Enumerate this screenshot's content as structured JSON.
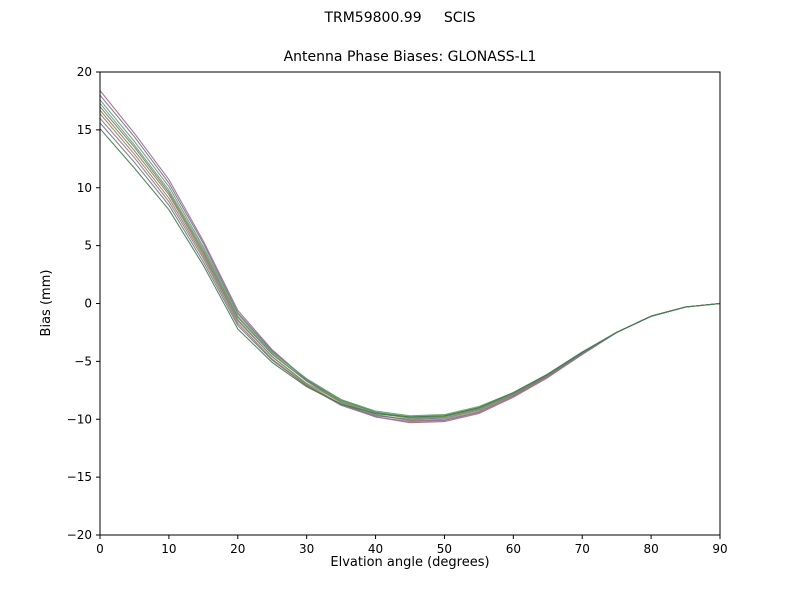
{
  "figure": {
    "suptitle": "TRM59800.99     SCIS",
    "background": "#ffffff",
    "axes_color": "#000000"
  },
  "chart_data": {
    "type": "line",
    "title": "Antenna Phase Biases: GLONASS-L1",
    "xlabel": "Elvation angle (degrees)",
    "ylabel": "Bias (mm)",
    "xlim": [
      0,
      90
    ],
    "ylim": [
      -20,
      20
    ],
    "xticks": [
      0,
      10,
      20,
      30,
      40,
      50,
      60,
      70,
      80,
      90
    ],
    "yticks": [
      -20,
      -15,
      -10,
      -5,
      0,
      5,
      10,
      15,
      20
    ],
    "grid": false,
    "legend_position": "none",
    "x": [
      0,
      5,
      10,
      15,
      20,
      25,
      30,
      35,
      40,
      45,
      50,
      55,
      60,
      65,
      70,
      75,
      80,
      85,
      90
    ],
    "series": [
      {
        "name": "line-01",
        "color": "#9c6a84",
        "values": [
          18.4,
          14.7,
          10.7,
          5.4,
          -0.6,
          -4.0,
          -6.6,
          -8.5,
          -9.6,
          -10.1,
          -10.1,
          -9.4,
          -8.0,
          -6.3,
          -4.4,
          -2.5,
          -1.1,
          -0.3,
          0.0
        ]
      },
      {
        "name": "line-02",
        "color": "#7b68a0",
        "values": [
          18.0,
          14.4,
          10.4,
          5.2,
          -0.8,
          -4.1,
          -6.6,
          -8.3,
          -9.4,
          -9.9,
          -9.8,
          -9.1,
          -7.8,
          -6.2,
          -4.3,
          -2.5,
          -1.1,
          -0.3,
          0.0
        ]
      },
      {
        "name": "line-03",
        "color": "#5f9e5f",
        "values": [
          17.6,
          14.0,
          10.1,
          4.9,
          -0.9,
          -4.2,
          -6.5,
          -8.3,
          -9.3,
          -9.7,
          -9.6,
          -8.9,
          -7.7,
          -6.1,
          -4.2,
          -2.5,
          -1.1,
          -0.3,
          0.0
        ]
      },
      {
        "name": "line-04",
        "color": "#8c8c8c",
        "values": [
          17.3,
          13.7,
          9.8,
          4.7,
          -1.1,
          -4.3,
          -6.7,
          -8.6,
          -9.6,
          -10.1,
          -10.0,
          -9.3,
          -8.0,
          -6.3,
          -4.3,
          -2.5,
          -1.1,
          -0.3,
          0.0
        ]
      },
      {
        "name": "line-05",
        "color": "#4f8f6b",
        "values": [
          17.0,
          13.5,
          9.6,
          4.5,
          -1.2,
          -4.4,
          -6.7,
          -8.4,
          -9.4,
          -9.8,
          -9.7,
          -9.0,
          -7.8,
          -6.1,
          -4.2,
          -2.5,
          -1.1,
          -0.3,
          0.0
        ]
      },
      {
        "name": "line-06",
        "color": "#a56a5a",
        "values": [
          16.7,
          13.2,
          9.4,
          4.3,
          -1.4,
          -4.6,
          -7.0,
          -8.7,
          -9.8,
          -10.3,
          -10.2,
          -9.5,
          -8.1,
          -6.4,
          -4.4,
          -2.5,
          -1.1,
          -0.3,
          0.0
        ]
      },
      {
        "name": "line-07",
        "color": "#7d9440",
        "values": [
          16.4,
          12.9,
          9.1,
          4.1,
          -1.5,
          -4.6,
          -6.9,
          -8.5,
          -9.5,
          -9.9,
          -9.8,
          -9.1,
          -7.8,
          -6.2,
          -4.3,
          -2.5,
          -1.1,
          -0.3,
          0.0
        ]
      },
      {
        "name": "line-08",
        "color": "#9370aa",
        "values": [
          16.0,
          12.6,
          8.8,
          3.9,
          -1.7,
          -4.8,
          -7.1,
          -8.8,
          -9.8,
          -10.2,
          -10.1,
          -9.4,
          -8.0,
          -6.3,
          -4.4,
          -2.5,
          -1.1,
          -0.3,
          0.0
        ]
      },
      {
        "name": "line-09",
        "color": "#777777",
        "values": [
          15.6,
          12.2,
          8.5,
          3.6,
          -1.9,
          -4.9,
          -7.1,
          -8.7,
          -9.7,
          -10.0,
          -9.9,
          -9.2,
          -7.9,
          -6.2,
          -4.3,
          -2.5,
          -1.1,
          -0.3,
          0.0
        ]
      },
      {
        "name": "line-10",
        "color": "#3e7d4f",
        "values": [
          15.1,
          11.7,
          8.1,
          3.3,
          -2.2,
          -5.1,
          -7.2,
          -8.7,
          -9.5,
          -9.8,
          -9.7,
          -9.0,
          -7.7,
          -6.1,
          -4.2,
          -2.5,
          -1.1,
          -0.3,
          0.0
        ]
      }
    ]
  }
}
